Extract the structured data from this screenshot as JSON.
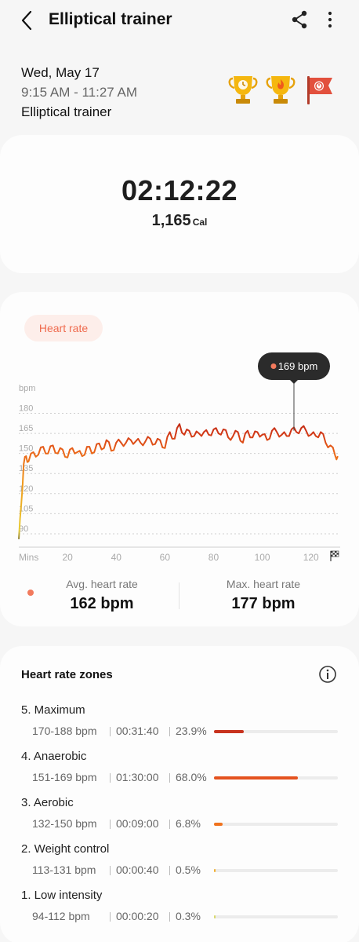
{
  "header": {
    "title": "Elliptical trainer"
  },
  "summary": {
    "date": "Wed, May 17",
    "time_range": "9:15 AM - 11:27 AM",
    "exercise": "Elliptical trainer"
  },
  "achievements": [
    "trophy-time-icon",
    "trophy-calorie-icon",
    "flag-record-icon"
  ],
  "totals": {
    "duration": "02:12:22",
    "calories": "1,165",
    "calories_unit": "Cal"
  },
  "heart_rate": {
    "chip": "Heart rate",
    "tooltip": "169 bpm",
    "avg_label": "Avg. heart rate",
    "avg_value": "162 bpm",
    "max_label": "Max. heart rate",
    "max_value": "177 bpm"
  },
  "colors": {
    "accent": "#f27a5d",
    "zone5": "#c8331e",
    "zone4": "#e4521f",
    "zone3": "#f0731e",
    "zone2": "#f2b035",
    "zone1": "#d9d96a"
  },
  "chart_data": {
    "type": "line",
    "ylabel": "bpm",
    "y_ticks": [
      "90",
      "105",
      "120",
      "135",
      "150",
      "165",
      "180"
    ],
    "xlabel": "Mins",
    "x_ticks": [
      "20",
      "40",
      "60",
      "80",
      "100",
      "120"
    ],
    "xlim": [
      0,
      132
    ],
    "ylim": [
      80,
      185
    ],
    "tooltip_x": 113,
    "series": [
      {
        "x": [
          0,
          1,
          2,
          3,
          4,
          6,
          8,
          10,
          12,
          14,
          16,
          18,
          20,
          22,
          24,
          26,
          28,
          30,
          32,
          34,
          36,
          38,
          40,
          42,
          44,
          46,
          48,
          50,
          52,
          54,
          56,
          58,
          60,
          62,
          64,
          66,
          68,
          70,
          72,
          74,
          76,
          78,
          80,
          82,
          84,
          86,
          88,
          90,
          92,
          94,
          96,
          98,
          100,
          102,
          104,
          106,
          108,
          110,
          112,
          114,
          116,
          118,
          120,
          122,
          124,
          126,
          128,
          130,
          131
        ],
        "y": [
          86,
          112,
          142,
          148,
          144,
          151,
          149,
          155,
          150,
          156,
          150,
          153,
          147,
          154,
          151,
          148,
          155,
          150,
          157,
          153,
          160,
          152,
          158,
          158,
          158,
          160,
          159,
          158,
          159,
          161,
          157,
          160,
          154,
          166,
          161,
          172,
          164,
          167,
          163,
          165,
          166,
          164,
          168,
          165,
          168,
          162,
          163,
          166,
          158,
          167,
          162,
          166,
          164,
          160,
          167,
          166,
          164,
          163,
          168,
          166,
          169,
          167,
          164,
          163,
          166,
          158,
          156,
          148,
          148
        ]
      }
    ]
  },
  "zones": {
    "title": "Heart rate zones",
    "items": [
      {
        "name": "5. Maximum",
        "range": "170-188 bpm",
        "duration": "00:31:40",
        "percent": "23.9%",
        "fraction": 0.239
      },
      {
        "name": "4. Anaerobic",
        "range": "151-169 bpm",
        "duration": "01:30:00",
        "percent": "68.0%",
        "fraction": 0.68
      },
      {
        "name": "3. Aerobic",
        "range": "132-150 bpm",
        "duration": "00:09:00",
        "percent": "6.8%",
        "fraction": 0.068
      },
      {
        "name": "2. Weight control",
        "range": "113-131 bpm",
        "duration": "00:00:40",
        "percent": "0.5%",
        "fraction": 0.005
      },
      {
        "name": "1. Low intensity",
        "range": "94-112 bpm",
        "duration": "00:00:20",
        "percent": "0.3%",
        "fraction": 0.003
      }
    ]
  }
}
